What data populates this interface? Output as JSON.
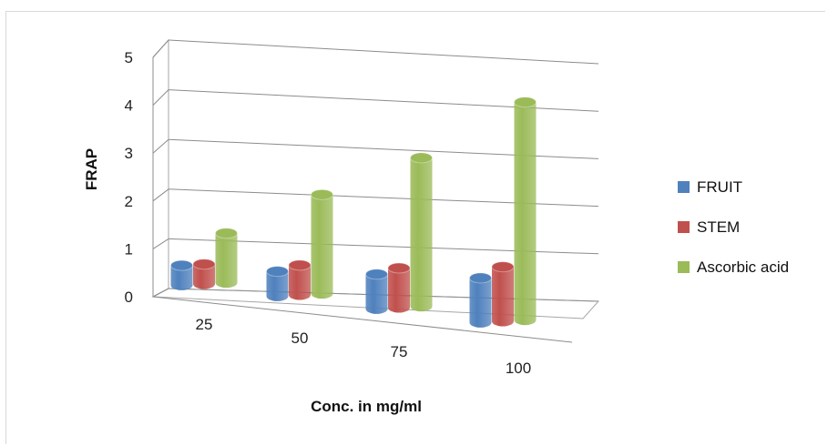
{
  "chart_data": {
    "type": "bar",
    "subtype": "3d-clustered-column",
    "categories": [
      "25",
      "50",
      "75",
      "100"
    ],
    "series": [
      {
        "name": "FRUIT",
        "values": [
          0.4,
          0.5,
          0.7,
          0.9
        ],
        "color": "#4f81bd"
      },
      {
        "name": "STEM",
        "values": [
          0.4,
          0.6,
          0.8,
          1.1
        ],
        "color": "#c0504d"
      },
      {
        "name": "Ascorbic acid",
        "values": [
          1.0,
          2.0,
          3.0,
          4.4
        ],
        "color": "#9bbb59"
      }
    ],
    "xlabel": "Conc. in mg/ml",
    "ylabel": "FRAP",
    "ylim": [
      0,
      5
    ],
    "yticks": [
      "0",
      "1",
      "2",
      "3",
      "4",
      "5"
    ],
    "grid": true,
    "legend": "right"
  }
}
